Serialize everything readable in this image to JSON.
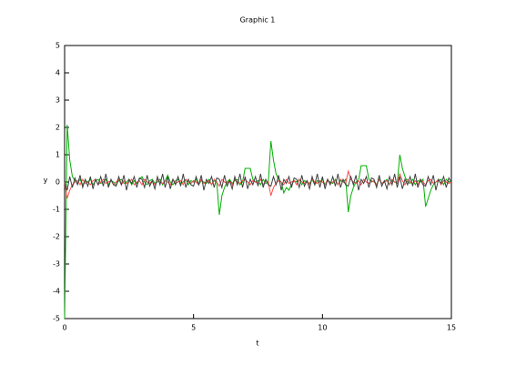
{
  "chart_data": {
    "type": "line",
    "title": "Graphic 1",
    "x_label": "t",
    "y_label": "y",
    "xlim": [
      0,
      15
    ],
    "xticks": [
      0,
      5,
      10,
      15
    ],
    "ylim": [
      -5,
      5
    ],
    "yticks": [
      -5,
      -4,
      -3,
      -2,
      -1,
      0,
      1,
      2,
      3,
      4,
      5
    ],
    "x": [
      0,
      0.1,
      0.2,
      0.3,
      0.4,
      0.5,
      0.6,
      0.7,
      0.8,
      0.9,
      1,
      1.1,
      1.2,
      1.3,
      1.4,
      1.5,
      1.6,
      1.7,
      1.8,
      1.9,
      2,
      2.1,
      2.2,
      2.3,
      2.4,
      2.5,
      2.6,
      2.7,
      2.8,
      2.9,
      3,
      3.1,
      3.2,
      3.3,
      3.4,
      3.5,
      3.6,
      3.7,
      3.8,
      3.9,
      4,
      4.1,
      4.2,
      4.3,
      4.4,
      4.5,
      4.6,
      4.7,
      4.8,
      4.9,
      5,
      5.1,
      5.2,
      5.3,
      5.4,
      5.5,
      5.6,
      5.7,
      5.8,
      5.9,
      6,
      6.1,
      6.2,
      6.3,
      6.4,
      6.5,
      6.6,
      6.7,
      6.8,
      6.9,
      7,
      7.1,
      7.2,
      7.3,
      7.4,
      7.5,
      7.6,
      7.7,
      7.8,
      7.9,
      8,
      8.1,
      8.2,
      8.3,
      8.4,
      8.5,
      8.6,
      8.7,
      8.8,
      8.9,
      9,
      9.1,
      9.2,
      9.3,
      9.4,
      9.5,
      9.6,
      9.7,
      9.8,
      9.9,
      10,
      10.1,
      10.2,
      10.3,
      10.4,
      10.5,
      10.6,
      10.7,
      10.8,
      10.9,
      11,
      11.1,
      11.2,
      11.3,
      11.4,
      11.5,
      11.6,
      11.7,
      11.8,
      11.9,
      12,
      12.1,
      12.2,
      12.3,
      12.4,
      12.5,
      12.6,
      12.7,
      12.8,
      12.9,
      13,
      13.1,
      13.2,
      13.3,
      13.4,
      13.5,
      13.6,
      13.7,
      13.8,
      13.9,
      14,
      14.1,
      14.2,
      14.3,
      14.4,
      14.5,
      14.6,
      14.7,
      14.8,
      14.9,
      15
    ],
    "series": [
      {
        "color": "#00b000",
        "values": [
          -5,
          2.1,
          0.8,
          0.2,
          0.05,
          -0.05,
          0.1,
          -0.1,
          0.05,
          0,
          0.1,
          -0.1,
          0.05,
          0.1,
          -0.05,
          0,
          0.1,
          -0.1,
          0.05,
          0,
          -0.1,
          0.05,
          0.1,
          -0.05,
          0,
          0.1,
          -0.1,
          0.05,
          -0.05,
          0.1,
          0.2,
          0,
          -0.1,
          0.05,
          0.1,
          -0.05,
          0,
          0.1,
          -0.1,
          0.05,
          0.25,
          0,
          -0.1,
          0.05,
          0.1,
          -0.05,
          0,
          0.1,
          -0.1,
          0.05,
          0,
          0.1,
          -0.1,
          0.05,
          0,
          -0.05,
          0.1,
          -0.1,
          0.05,
          0,
          -1.2,
          -0.5,
          -0.2,
          0,
          0.1,
          -0.05,
          0.05,
          0.1,
          -0.1,
          0,
          0.5,
          0.5,
          0.5,
          0.1,
          0,
          0.05,
          -0.1,
          0.1,
          -0.05,
          0,
          1.5,
          0.8,
          0.3,
          0.1,
          0,
          -0.4,
          -0.2,
          -0.3,
          -0.1,
          0.05,
          0,
          0.1,
          -0.1,
          0.05,
          0,
          -0.05,
          0.1,
          -0.1,
          0.05,
          0,
          0.1,
          -0.1,
          0.05,
          0,
          -0.05,
          0.1,
          -0.1,
          0.05,
          0,
          0.1,
          -1.1,
          -0.5,
          -0.2,
          0,
          0.05,
          0.6,
          0.6,
          0.6,
          0.1,
          0,
          0.05,
          -0.1,
          0.1,
          -0.05,
          0,
          0.1,
          -0.1,
          0.05,
          0,
          -0.05,
          1.0,
          0.5,
          0.2,
          0,
          -0.05,
          0.1,
          -0.1,
          0.05,
          0,
          0.1,
          -0.9,
          -0.6,
          -0.3,
          -0.1,
          0,
          0.05,
          0.1,
          -0.1,
          0.1,
          0,
          0.05
        ]
      },
      {
        "color": "#ff4a4a",
        "values": [
          0,
          -0.6,
          -0.3,
          -0.1,
          0,
          0.05,
          -0.1,
          0.1,
          -0.05,
          0,
          -0.1,
          0.05,
          0.1,
          -0.1,
          0,
          0.1,
          -0.05,
          0,
          0.05,
          -0.1,
          0,
          0.1,
          -0.1,
          0.05,
          -0.05,
          0,
          0.1,
          -0.1,
          0,
          0.05,
          -0.1,
          0.1,
          0,
          -0.05,
          0.05,
          -0.1,
          0.1,
          0,
          -0.05,
          0.05,
          0,
          -0.1,
          0.1,
          -0.05,
          0,
          0.05,
          -0.1,
          0.1,
          0,
          -0.05,
          0.05,
          0,
          -0.1,
          0.1,
          -0.05,
          0,
          0.05,
          -0.1,
          0.1,
          0,
          -0.15,
          0.1,
          0,
          -0.05,
          0.05,
          -0.1,
          0.1,
          0,
          -0.05,
          0.05,
          0.1,
          0,
          -0.1,
          0.05,
          0,
          -0.05,
          0.1,
          -0.1,
          0.05,
          0,
          -0.5,
          -0.2,
          -0.05,
          0.05,
          0,
          -0.1,
          0.1,
          -0.05,
          0,
          0.05,
          -0.1,
          0.1,
          0,
          -0.05,
          0.05,
          -0.1,
          0.1,
          0,
          -0.05,
          0.05,
          0,
          -0.1,
          0.1,
          -0.05,
          0,
          0.05,
          -0.1,
          0.1,
          0,
          -0.05,
          0.4,
          0.1,
          0,
          -0.05,
          0.05,
          -0.1,
          0.1,
          0,
          -0.05,
          0.05,
          0,
          -0.1,
          0.1,
          -0.05,
          0,
          0.05,
          -0.1,
          0.1,
          0,
          -0.05,
          0.3,
          0.05,
          -0.1,
          0.1,
          0,
          -0.05,
          0.05,
          -0.1,
          0.1,
          0,
          -0.1,
          0.05,
          0.1,
          -0.05,
          0,
          0.1,
          -0.1,
          0.05,
          0,
          -0.05,
          0
        ]
      },
      {
        "color": "#404040",
        "values": [
          0,
          -0.3,
          0.2,
          -0.2,
          0.15,
          -0.1,
          0.25,
          -0.2,
          0.1,
          -0.15,
          0.2,
          -0.25,
          0.1,
          -0.1,
          0.2,
          -0.15,
          0.3,
          -0.2,
          0.1,
          -0.1,
          -0.15,
          0.2,
          -0.1,
          0.25,
          -0.3,
          0.1,
          -0.05,
          0.2,
          -0.2,
          0.15,
          0.1,
          -0.2,
          0.25,
          -0.15,
          0.05,
          -0.25,
          0.2,
          -0.1,
          0.3,
          -0.2,
          0.2,
          -0.25,
          0.1,
          -0.1,
          0.2,
          -0.15,
          0.3,
          -0.2,
          0.1,
          -0.1,
          -0.15,
          0.2,
          -0.1,
          0.25,
          -0.3,
          0.1,
          -0.05,
          0.2,
          -0.2,
          0.15,
          0.1,
          -0.2,
          0.25,
          -0.15,
          0.05,
          -0.25,
          0.2,
          -0.1,
          0.3,
          -0.2,
          0.2,
          -0.25,
          0.1,
          -0.1,
          0.2,
          -0.15,
          0.3,
          -0.2,
          0.1,
          -0.1,
          -0.15,
          0.2,
          -0.1,
          0.25,
          -0.3,
          0.1,
          -0.05,
          0.2,
          -0.2,
          0.15,
          0.1,
          -0.2,
          0.25,
          -0.15,
          0.05,
          -0.25,
          0.2,
          -0.1,
          0.3,
          -0.2,
          0.2,
          -0.25,
          0.1,
          -0.1,
          0.2,
          -0.15,
          0.3,
          -0.2,
          0.1,
          -0.1,
          -0.15,
          0.2,
          -0.1,
          0.25,
          -0.3,
          0.1,
          -0.05,
          0.2,
          -0.2,
          0.15,
          0.1,
          -0.2,
          0.25,
          -0.15,
          0.05,
          -0.25,
          0.2,
          -0.1,
          0.3,
          -0.2,
          0.2,
          -0.25,
          0.1,
          -0.1,
          0.2,
          -0.15,
          0.3,
          -0.2,
          0.1,
          -0.1,
          -0.15,
          0.2,
          -0.1,
          0.25,
          -0.3,
          0.1,
          -0.05,
          0.2,
          -0.2,
          0.15,
          0
        ]
      }
    ]
  }
}
